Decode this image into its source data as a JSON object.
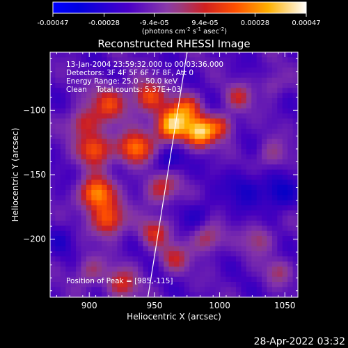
{
  "chart_data": {
    "type": "heatmap",
    "title": "Reconstructed RHESSI Image",
    "xlabel": "Heliocentric X (arcsec)",
    "ylabel": "Heliocentric Y (arcsec)",
    "xlim": [
      870,
      1060
    ],
    "ylim": [
      -245,
      -55
    ],
    "xticks": [
      900,
      950,
      1000,
      1050
    ],
    "yticks": [
      -100,
      -150,
      -200
    ],
    "colorbar": {
      "ticks": [
        "-0.00047",
        "-0.00028",
        "-9.4e-05",
        "9.4e-05",
        "0.00028",
        "0.00047"
      ],
      "tick_values": [
        -0.00047,
        -0.00028,
        -9.4e-05,
        9.4e-05,
        0.00028,
        0.00047
      ],
      "range": [
        -0.00047,
        0.00047
      ],
      "unit_base": "(photons cm",
      "unit_exp1": "-2",
      "unit_mid": " s",
      "unit_exp2": "-1",
      "unit_mid2": " asec",
      "unit_exp3": "-2",
      "unit_end": ")"
    },
    "annotations": {
      "time_range": "13-Jan-2004 23:59:32.000 to 00:03:36.000",
      "detectors": "Detectors: 3F 4F 5F 6F 7F 8F, Att 0",
      "energy_range": "Energy Range: 25.0 - 50.0 keV",
      "method_counts": "Clean    Total counts: 5.37E+03",
      "peak": "Position of Peak = [985,-115]"
    },
    "peak": {
      "x": 985,
      "y": -115
    },
    "limb_line": {
      "x1": 945,
      "y1": -245,
      "x2": 975,
      "y2": -55
    },
    "hotspots": [
      {
        "x": 963,
        "y": -112,
        "amp": 1.0,
        "s": 9
      },
      {
        "x": 985,
        "y": -117,
        "amp": 0.95,
        "s": 8
      },
      {
        "x": 1002,
        "y": -112,
        "amp": 0.5,
        "s": 7
      },
      {
        "x": 975,
        "y": -98,
        "amp": 0.55,
        "s": 8
      },
      {
        "x": 945,
        "y": -90,
        "amp": 0.6,
        "s": 9
      },
      {
        "x": 915,
        "y": -95,
        "amp": 0.55,
        "s": 10
      },
      {
        "x": 895,
        "y": -110,
        "amp": 0.5,
        "s": 8
      },
      {
        "x": 905,
        "y": -130,
        "amp": 0.7,
        "s": 9
      },
      {
        "x": 935,
        "y": -130,
        "amp": 0.75,
        "s": 9
      },
      {
        "x": 955,
        "y": -160,
        "amp": 0.5,
        "s": 9
      },
      {
        "x": 905,
        "y": -165,
        "amp": 0.85,
        "s": 9
      },
      {
        "x": 915,
        "y": -185,
        "amp": 0.7,
        "s": 9
      },
      {
        "x": 950,
        "y": -195,
        "amp": 0.45,
        "s": 8
      },
      {
        "x": 990,
        "y": -200,
        "amp": 0.45,
        "s": 8
      },
      {
        "x": 965,
        "y": -215,
        "amp": 0.4,
        "s": 8
      },
      {
        "x": 925,
        "y": -235,
        "amp": 0.45,
        "s": 9
      },
      {
        "x": 900,
        "y": -225,
        "amp": 0.35,
        "s": 8
      },
      {
        "x": 1015,
        "y": -90,
        "amp": 0.4,
        "s": 7
      },
      {
        "x": 1040,
        "y": -135,
        "amp": 0.3,
        "s": 8
      },
      {
        "x": 1030,
        "y": -200,
        "amp": 0.35,
        "s": 8
      },
      {
        "x": 1045,
        "y": -225,
        "amp": 0.3,
        "s": 7
      },
      {
        "x": 1040,
        "y": -80,
        "amp": 0.25,
        "s": 7
      },
      {
        "x": 1020,
        "y": -160,
        "amp": -0.25,
        "s": 10
      },
      {
        "x": 1045,
        "y": -165,
        "amp": -0.35,
        "s": 9
      },
      {
        "x": 960,
        "y": -140,
        "amp": -0.3,
        "s": 8
      },
      {
        "x": 985,
        "y": -180,
        "amp": -0.2,
        "s": 8
      },
      {
        "x": 880,
        "y": -200,
        "amp": -0.15,
        "s": 8
      }
    ]
  },
  "footer": {
    "timestamp": "28-Apr-2022 03:32"
  }
}
